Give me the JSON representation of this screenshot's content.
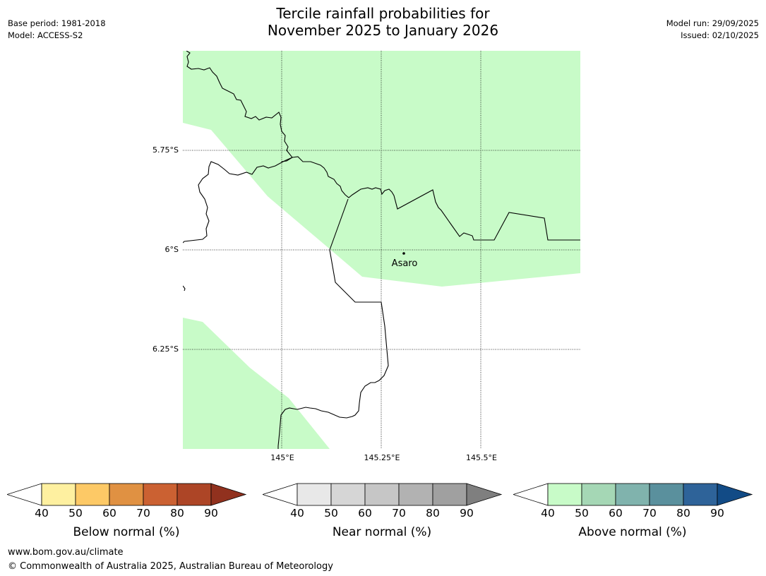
{
  "header": {
    "title_line1": "Tercile rainfall probabilities for",
    "title_line2": "November 2025 to January 2026",
    "base_period": "Base period: 1981-2018",
    "model": "Model: ACCESS-S2",
    "model_run": "Model run: 29/09/2025",
    "issued": "Issued: 02/10/2025"
  },
  "map": {
    "lat_labels": [
      "5.75°S",
      "6°S",
      "6.25°S"
    ],
    "lon_labels": [
      "145°E",
      "145.25°E",
      "145.5°E"
    ],
    "place_label": "Asaro",
    "colors": {
      "above_40_50": "#c8fbc8",
      "coast": "#000000"
    }
  },
  "legends": [
    {
      "label": "Below normal (%)",
      "ticks": [
        "40",
        "50",
        "60",
        "70",
        "80",
        "90"
      ],
      "colors": [
        "#fef0a0",
        "#fdc966",
        "#e09142",
        "#cb6132",
        "#ad4526",
        "#91311e"
      ]
    },
    {
      "label": "Near normal (%)",
      "ticks": [
        "40",
        "50",
        "60",
        "70",
        "80",
        "90"
      ],
      "colors": [
        "#e8e8e8",
        "#d6d6d6",
        "#c6c6c6",
        "#b2b2b2",
        "#a0a0a0",
        "#7f7f7f"
      ]
    },
    {
      "label": "Above normal (%)",
      "ticks": [
        "40",
        "50",
        "60",
        "70",
        "80",
        "90"
      ],
      "colors": [
        "#c8fbc8",
        "#a5d7b5",
        "#80b3ad",
        "#5a909d",
        "#2e6399",
        "#124b86"
      ]
    }
  ],
  "footer": {
    "website": "www.bom.gov.au/climate",
    "copyright": "© Commonwealth of Australia 2025, Australian Bureau of Meteorology"
  }
}
